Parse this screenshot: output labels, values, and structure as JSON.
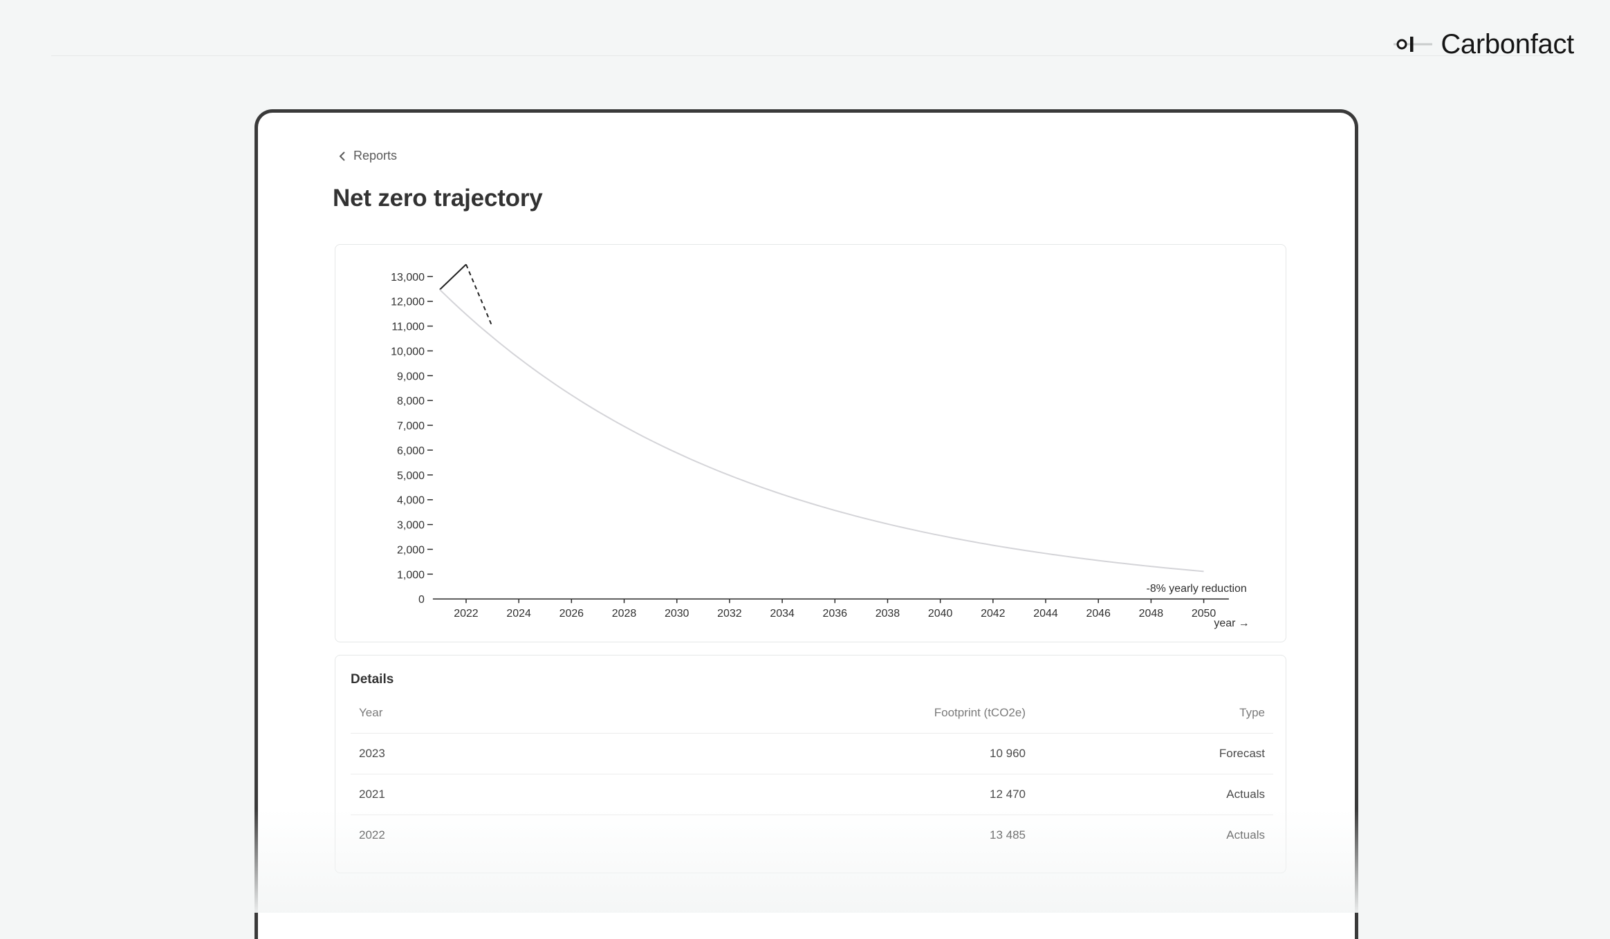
{
  "brand": {
    "name": "Carbonfact",
    "logo_icon": "carbonfact-logo-icon"
  },
  "breadcrumb": {
    "label": "Reports",
    "icon": "chevron-left-icon"
  },
  "page": {
    "title": "Net zero trajectory"
  },
  "chart_data": {
    "type": "line",
    "x_ticks": [
      "2022",
      "2024",
      "2026",
      "2028",
      "2030",
      "2032",
      "2034",
      "2036",
      "2038",
      "2040",
      "2042",
      "2044",
      "2046",
      "2048",
      "2050"
    ],
    "y_ticks": [
      "0",
      "1,000",
      "2,000",
      "3,000",
      "4,000",
      "5,000",
      "6,000",
      "7,000",
      "8,000",
      "9,000",
      "10,000",
      "11,000",
      "12,000",
      "13,000"
    ],
    "ylim": [
      0,
      13000
    ],
    "xlim": [
      2021,
      2052
    ],
    "xlabel": "year →",
    "annotation": "-8% yearly reduction",
    "series": [
      {
        "style": "solid",
        "color": "#222222",
        "x": [
          2021,
          2022
        ],
        "y": [
          12470,
          13485
        ]
      },
      {
        "style": "dashed",
        "color": "#222222",
        "x": [
          2022,
          2023
        ],
        "y": [
          13485,
          10960
        ]
      },
      {
        "style": "trajectory",
        "color": "#d4d4d8",
        "rate": -0.08,
        "x_start": 2021,
        "x_end": 2050,
        "y_start": 12470
      }
    ]
  },
  "details": {
    "title": "Details",
    "columns": [
      "Year",
      "Footprint (tCO2e)",
      "Type"
    ],
    "rows": [
      {
        "year": "2023",
        "footprint": "10 960",
        "type": "Forecast"
      },
      {
        "year": "2021",
        "footprint": "12 470",
        "type": "Actuals"
      },
      {
        "year": "2022",
        "footprint": "13 485",
        "type": "Actuals"
      }
    ]
  }
}
